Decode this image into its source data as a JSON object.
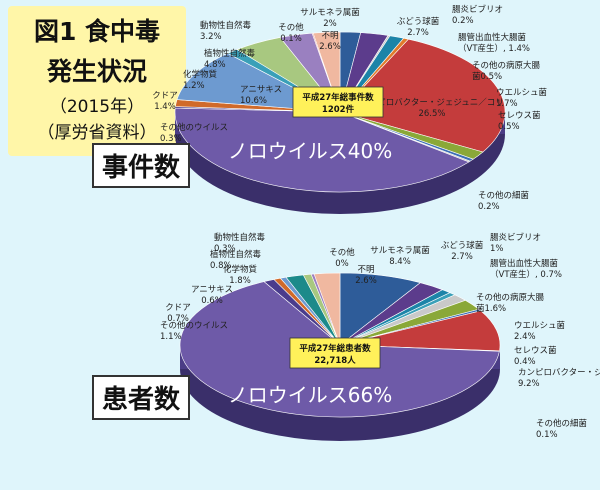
{
  "title": {
    "main": "図1 食中毒",
    "sub": "発生状況",
    "year": "（2015年）",
    "source": "（厚労省資料）"
  },
  "chart_data": [
    {
      "type": "pie",
      "name_tag": "事件数",
      "center_label": "平成27年総事件数",
      "center_value": "1202件",
      "big_label": "ノロウイルス40%",
      "slices": [
        {
          "label": "サルモネラ属菌",
          "value_text": "2%",
          "value": 2.0,
          "color": "#2e5c99"
        },
        {
          "label": "ぶどう球菌",
          "value_text": "2.7%",
          "value": 2.7,
          "color": "#5c3c8c"
        },
        {
          "label": "腸炎ビブリオ",
          "value_text": "0.2%",
          "value": 0.2,
          "color": "#c9c9c9"
        },
        {
          "label": "腸管出血性大腸菌",
          "value_text": "（VT産生）, 1.4%",
          "value": 1.4,
          "color": "#1c84a8"
        },
        {
          "label": "その他の病原大腸",
          "value_text": "菌0.5%",
          "value": 0.5,
          "color": "#e07b2a"
        },
        {
          "label": "カンピロバクター・ジェジュニ／コリ",
          "value_text": "26.5%",
          "value": 26.5,
          "color": "#c43c3c"
        },
        {
          "label": "ウエルシュ菌",
          "value_text": "1.7%",
          "value": 1.7,
          "color": "#8aa838"
        },
        {
          "label": "セレウス菌",
          "value_text": "0.5%",
          "value": 0.5,
          "color": "#3b6fb5"
        },
        {
          "label": "その他の細菌",
          "value_text": "0.2%",
          "value": 0.2,
          "color": "#aaaaaa"
        },
        {
          "label": "ノロウイルス",
          "value_text": "40%",
          "value": 40.0,
          "color": "#6e5aa8"
        },
        {
          "label": "その他のウイルス",
          "value_text": "0.3%",
          "value": 0.3,
          "color": "#4a3c8c"
        },
        {
          "label": "クドア",
          "value_text": "1.4%",
          "value": 1.4,
          "color": "#d06a2a"
        },
        {
          "label": "アニサキス",
          "value_text": "10.6%",
          "value": 10.6,
          "color": "#6d9ad0"
        },
        {
          "label": "化学物質",
          "value_text": "1.2%",
          "value": 1.2,
          "color": "#3aa0b8"
        },
        {
          "label": "植物性自然毒",
          "value_text": "4.8%",
          "value": 4.8,
          "color": "#a8c880"
        },
        {
          "label": "動物性自然毒",
          "value_text": "3.2%",
          "value": 3.2,
          "color": "#9a80c0"
        },
        {
          "label": "その他",
          "value_text": "0.1%",
          "value": 0.1,
          "color": "#d85a5a"
        },
        {
          "label": "不明",
          "value_text": "2.6%",
          "value": 2.6,
          "color": "#f0b8a0"
        }
      ]
    },
    {
      "type": "pie",
      "name_tag": "患者数",
      "center_label": "平成27年総患者数",
      "center_value": "22,718人",
      "big_label": "ノロウイルス66%",
      "slices": [
        {
          "label": "サルモネラ属菌",
          "value_text": "8.4%",
          "value": 8.4,
          "color": "#2e5c99"
        },
        {
          "label": "ぶどう球菌",
          "value_text": "2.7%",
          "value": 2.7,
          "color": "#5c3c8c"
        },
        {
          "label": "腸炎ビブリオ",
          "value_text": "1%",
          "value": 1.0,
          "color": "#1c84a8"
        },
        {
          "label": "腸管出血性大腸菌",
          "value_text": "（VT産生）, 0.7%",
          "value": 0.7,
          "color": "#3aa0b8"
        },
        {
          "label": "その他の病原大腸",
          "value_text": "菌1.6%",
          "value": 1.6,
          "color": "#c9c9c9"
        },
        {
          "label": "ウエルシュ菌",
          "value_text": "2.4%",
          "value": 2.4,
          "color": "#8aa838"
        },
        {
          "label": "セレウス菌",
          "value_text": "0.4%",
          "value": 0.4,
          "color": "#3b6fb5"
        },
        {
          "label": "カンピロバクター・ジェジュニ／コリ",
          "value_text": "9.2%",
          "value": 9.2,
          "color": "#c43c3c"
        },
        {
          "label": "その他の細菌",
          "value_text": "0.1%",
          "value": 0.1,
          "color": "#aaaaaa"
        },
        {
          "label": "ノロウイルス",
          "value_text": "66%",
          "value": 66.0,
          "color": "#6e5aa8"
        },
        {
          "label": "その他のウイルス",
          "value_text": "1.1%",
          "value": 1.1,
          "color": "#4a3c8c"
        },
        {
          "label": "クドア",
          "value_text": "0.7%",
          "value": 0.7,
          "color": "#d06a2a"
        },
        {
          "label": "アニサキス",
          "value_text": "0.6%",
          "value": 0.6,
          "color": "#6d9ad0"
        },
        {
          "label": "化学物質",
          "value_text": "1.8%",
          "value": 1.8,
          "color": "#1c8a8a"
        },
        {
          "label": "植物性自然毒",
          "value_text": "0.8%",
          "value": 0.8,
          "color": "#a8c880"
        },
        {
          "label": "動物性自然毒",
          "value_text": "0.3%",
          "value": 0.3,
          "color": "#9a80c0"
        },
        {
          "label": "その他",
          "value_text": "0%",
          "value": 0.0,
          "color": "#d85a5a"
        },
        {
          "label": "不明",
          "value_text": "2.6%",
          "value": 2.6,
          "color": "#f0b8a0"
        }
      ]
    }
  ]
}
